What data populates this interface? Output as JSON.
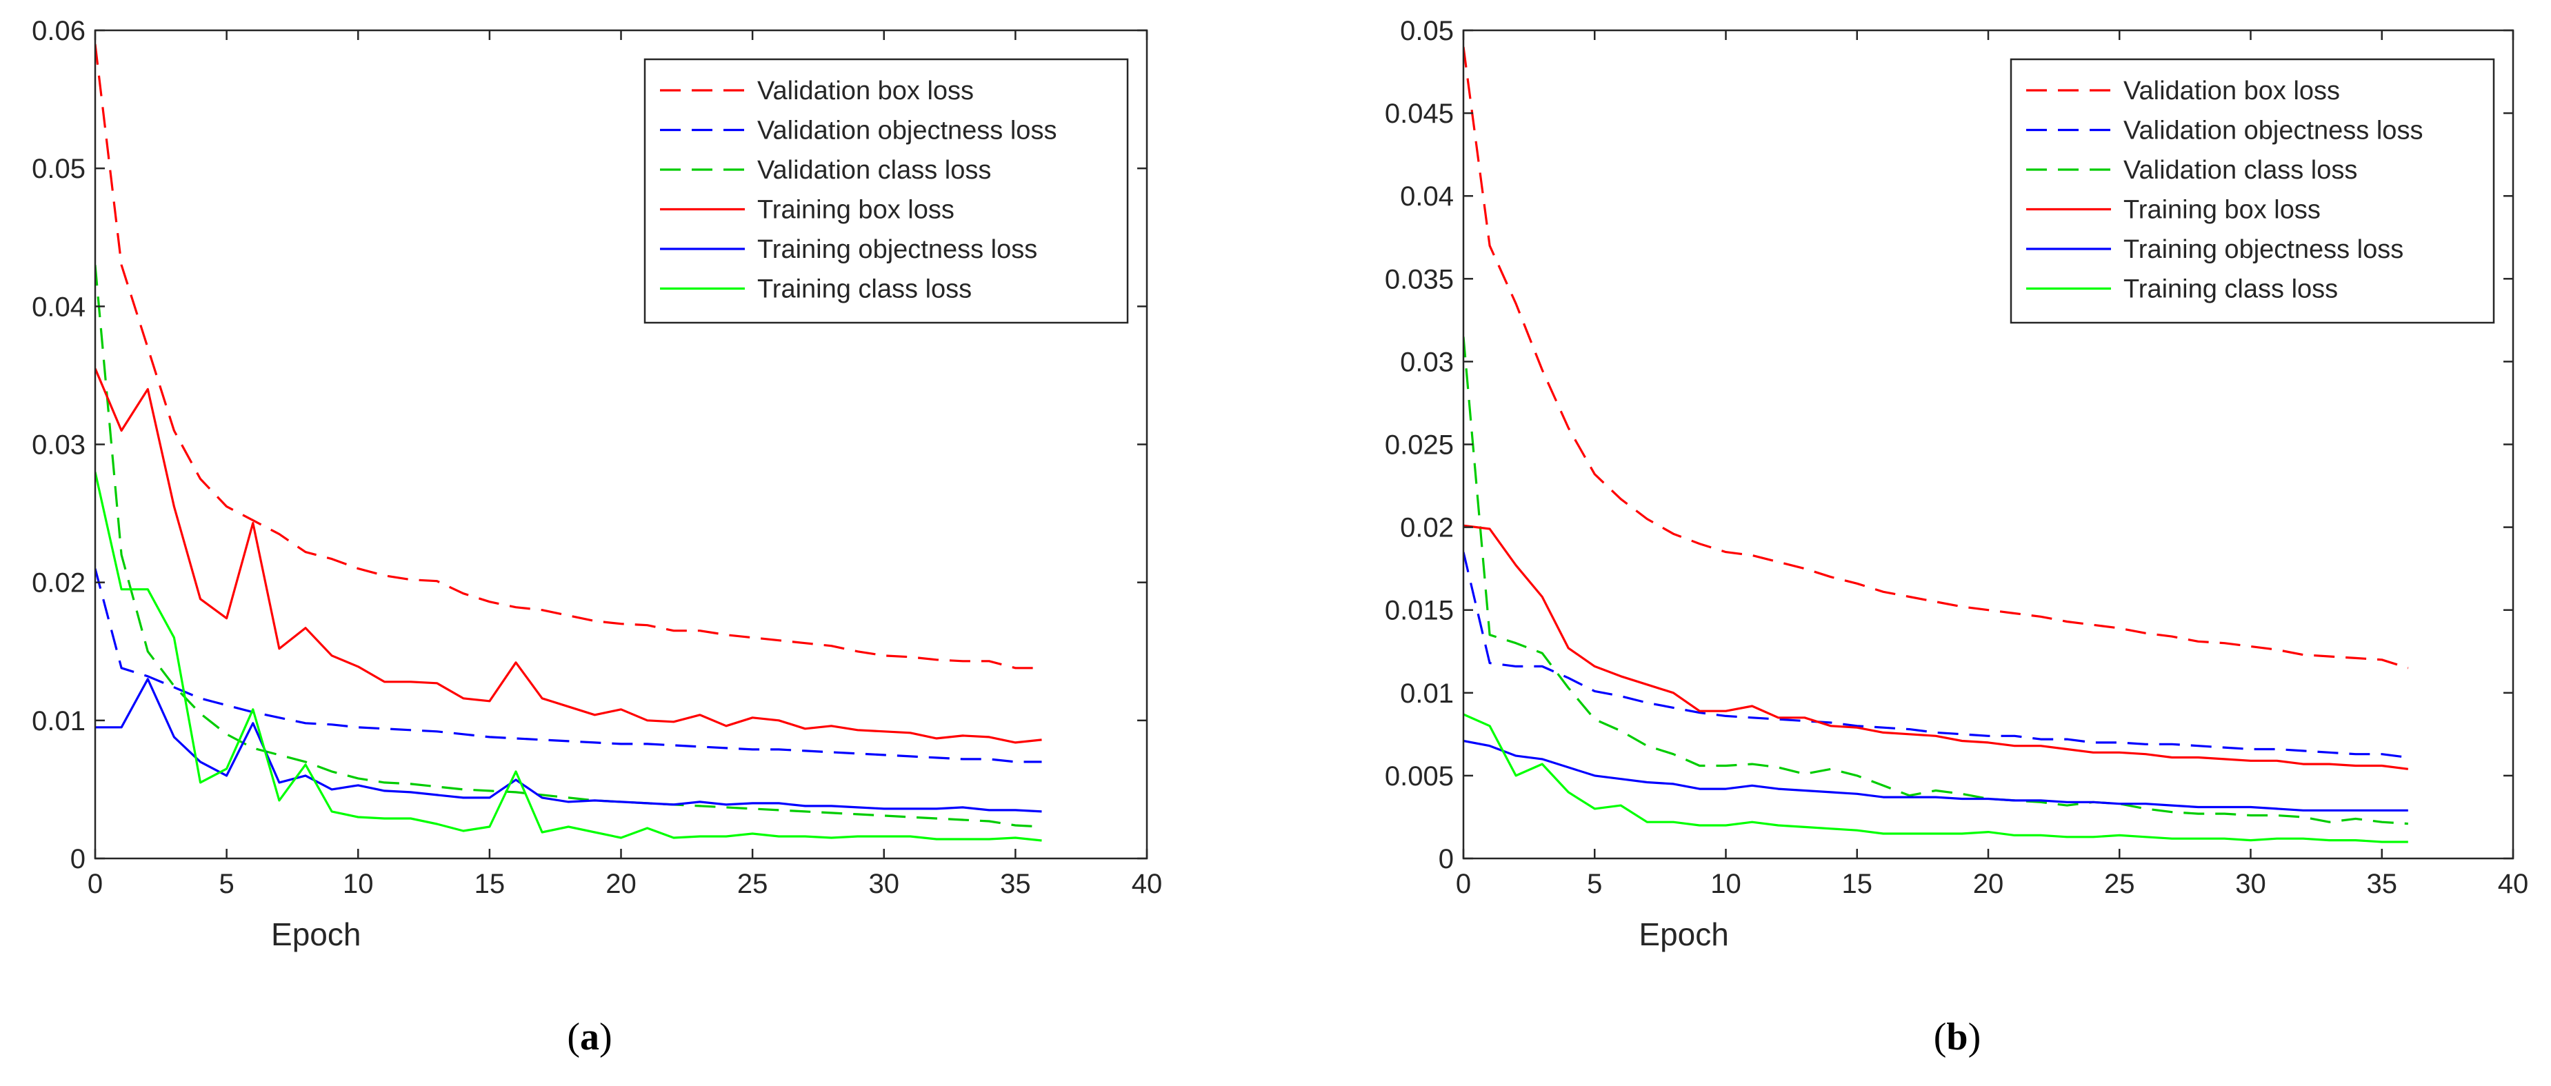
{
  "chart_data": [
    {
      "type": "line",
      "caption_letter": "a",
      "xlabel": "Epoch",
      "ylabel": "",
      "xlim": [
        0,
        40
      ],
      "ylim": [
        0,
        0.06
      ],
      "xticks": [
        0,
        5,
        10,
        15,
        20,
        25,
        30,
        35,
        40
      ],
      "yticks": [
        0,
        0.01,
        0.02,
        0.03,
        0.04,
        0.05,
        0.06
      ],
      "xtick_labels": [
        "0",
        "5",
        "10",
        "15",
        "20",
        "25",
        "30",
        "35",
        "40"
      ],
      "ytick_labels": [
        "0",
        "0.01",
        "0.02",
        "0.03",
        "0.04",
        "0.05",
        "0.06"
      ],
      "grid": false,
      "legend_position": "top-right",
      "x": [
        0,
        1,
        2,
        3,
        4,
        5,
        6,
        7,
        8,
        9,
        10,
        11,
        12,
        13,
        14,
        15,
        16,
        17,
        18,
        19,
        20,
        21,
        22,
        23,
        24,
        25,
        26,
        27,
        28,
        29,
        30,
        31,
        32,
        33,
        34,
        35,
        36
      ],
      "series": [
        {
          "name": "Validation box loss",
          "color": "#ff0000",
          "dash": true,
          "values": [
            0.059,
            0.043,
            0.037,
            0.031,
            0.0275,
            0.0255,
            0.0245,
            0.0235,
            0.0222,
            0.0217,
            0.021,
            0.0205,
            0.0202,
            0.0201,
            0.0192,
            0.0186,
            0.0182,
            0.018,
            0.0176,
            0.0172,
            0.017,
            0.0169,
            0.0165,
            0.0165,
            0.0162,
            0.016,
            0.0158,
            0.0156,
            0.0154,
            0.015,
            0.0147,
            0.0146,
            0.0144,
            0.0143,
            0.0143,
            0.0138,
            0.0138
          ]
        },
        {
          "name": "Validation objectness loss",
          "color": "#0000ff",
          "dash": true,
          "values": [
            0.021,
            0.0138,
            0.0132,
            0.0124,
            0.0116,
            0.0111,
            0.0106,
            0.0102,
            0.0098,
            0.0097,
            0.0095,
            0.0094,
            0.0093,
            0.0092,
            0.009,
            0.0088,
            0.0087,
            0.0086,
            0.0085,
            0.0084,
            0.0083,
            0.0083,
            0.0082,
            0.0081,
            0.008,
            0.0079,
            0.0079,
            0.0078,
            0.0077,
            0.0076,
            0.0075,
            0.0074,
            0.0073,
            0.0072,
            0.0072,
            0.007,
            0.007
          ]
        },
        {
          "name": "Validation class loss",
          "color": "#00cc00",
          "dash": true,
          "values": [
            0.043,
            0.022,
            0.015,
            0.0125,
            0.0105,
            0.009,
            0.008,
            0.0075,
            0.007,
            0.0063,
            0.0058,
            0.0055,
            0.0054,
            0.0052,
            0.005,
            0.0049,
            0.0048,
            0.0046,
            0.0044,
            0.0042,
            0.0041,
            0.004,
            0.0039,
            0.0038,
            0.0037,
            0.0036,
            0.0035,
            0.0034,
            0.0033,
            0.0032,
            0.0031,
            0.003,
            0.0029,
            0.0028,
            0.0027,
            0.0024,
            0.0023
          ]
        },
        {
          "name": "Training box loss",
          "color": "#ff0000",
          "dash": false,
          "values": [
            0.0355,
            0.031,
            0.034,
            0.0255,
            0.0188,
            0.0174,
            0.0243,
            0.0152,
            0.0167,
            0.0147,
            0.0139,
            0.0128,
            0.0128,
            0.0127,
            0.0116,
            0.0114,
            0.0142,
            0.0116,
            0.011,
            0.0104,
            0.0108,
            0.01,
            0.0099,
            0.0104,
            0.0096,
            0.0102,
            0.01,
            0.0094,
            0.0096,
            0.0093,
            0.0092,
            0.0091,
            0.0087,
            0.0089,
            0.0088,
            0.0084,
            0.0086
          ]
        },
        {
          "name": "Training objectness loss",
          "color": "#0000ff",
          "dash": false,
          "values": [
            0.0095,
            0.0095,
            0.013,
            0.0088,
            0.007,
            0.006,
            0.0098,
            0.0055,
            0.006,
            0.005,
            0.0053,
            0.0049,
            0.0048,
            0.0046,
            0.0044,
            0.0044,
            0.0057,
            0.0044,
            0.0041,
            0.0042,
            0.0041,
            0.004,
            0.0039,
            0.0041,
            0.0039,
            0.004,
            0.004,
            0.0038,
            0.0038,
            0.0037,
            0.0036,
            0.0036,
            0.0036,
            0.0037,
            0.0035,
            0.0035,
            0.0034
          ]
        },
        {
          "name": "Training class loss",
          "color": "#00ff00",
          "dash": false,
          "values": [
            0.028,
            0.0195,
            0.0195,
            0.016,
            0.0055,
            0.0065,
            0.0108,
            0.0042,
            0.0068,
            0.0034,
            0.003,
            0.0029,
            0.0029,
            0.0025,
            0.002,
            0.0023,
            0.0063,
            0.0019,
            0.0023,
            0.0019,
            0.0015,
            0.0022,
            0.0015,
            0.0016,
            0.0016,
            0.0018,
            0.0016,
            0.0016,
            0.0015,
            0.0016,
            0.0016,
            0.0016,
            0.0014,
            0.0014,
            0.0014,
            0.0015,
            0.0013
          ]
        }
      ]
    },
    {
      "type": "line",
      "caption_letter": "b",
      "xlabel": "Epoch",
      "ylabel": "",
      "xlim": [
        0,
        40
      ],
      "ylim": [
        0,
        0.05
      ],
      "xticks": [
        0,
        5,
        10,
        15,
        20,
        25,
        30,
        35,
        40
      ],
      "yticks": [
        0,
        0.005,
        0.01,
        0.015,
        0.02,
        0.025,
        0.03,
        0.035,
        0.04,
        0.045,
        0.05
      ],
      "xtick_labels": [
        "0",
        "5",
        "10",
        "15",
        "20",
        "25",
        "30",
        "35",
        "40"
      ],
      "ytick_labels": [
        "0",
        "0.005",
        "0.01",
        "0.015",
        "0.02",
        "0.025",
        "0.03",
        "0.035",
        "0.04",
        "0.045",
        "0.05"
      ],
      "grid": false,
      "legend_position": "top-right",
      "x": [
        0,
        1,
        2,
        3,
        4,
        5,
        6,
        7,
        8,
        9,
        10,
        11,
        12,
        13,
        14,
        15,
        16,
        17,
        18,
        19,
        20,
        21,
        22,
        23,
        24,
        25,
        26,
        27,
        28,
        29,
        30,
        31,
        32,
        33,
        34,
        35,
        36
      ],
      "series": [
        {
          "name": "Validation box loss",
          "color": "#ff0000",
          "dash": true,
          "values": [
            0.049,
            0.037,
            0.0335,
            0.0295,
            0.026,
            0.0232,
            0.0217,
            0.0205,
            0.0196,
            0.019,
            0.0185,
            0.0183,
            0.0179,
            0.0175,
            0.017,
            0.0166,
            0.0161,
            0.0158,
            0.0155,
            0.0152,
            0.015,
            0.0148,
            0.0146,
            0.0143,
            0.0141,
            0.0139,
            0.0136,
            0.0134,
            0.0131,
            0.013,
            0.0128,
            0.0126,
            0.0123,
            0.0122,
            0.0121,
            0.012,
            0.0115
          ]
        },
        {
          "name": "Validation objectness loss",
          "color": "#0000ff",
          "dash": true,
          "values": [
            0.0185,
            0.0118,
            0.0116,
            0.0116,
            0.0109,
            0.0101,
            0.0098,
            0.0094,
            0.0091,
            0.0088,
            0.0086,
            0.0085,
            0.0084,
            0.0083,
            0.0082,
            0.008,
            0.0079,
            0.0078,
            0.0076,
            0.0075,
            0.0074,
            0.0074,
            0.0072,
            0.0072,
            0.007,
            0.007,
            0.0069,
            0.0069,
            0.0068,
            0.0067,
            0.0066,
            0.0066,
            0.0065,
            0.0064,
            0.0063,
            0.0063,
            0.0061
          ]
        },
        {
          "name": "Validation class loss",
          "color": "#00cc00",
          "dash": true,
          "values": [
            0.0315,
            0.0135,
            0.013,
            0.0124,
            0.0103,
            0.0084,
            0.0077,
            0.0068,
            0.0063,
            0.0056,
            0.0056,
            0.0057,
            0.0055,
            0.0051,
            0.0054,
            0.005,
            0.0044,
            0.0038,
            0.0041,
            0.0039,
            0.0036,
            0.0035,
            0.0034,
            0.0032,
            0.0034,
            0.0033,
            0.003,
            0.0028,
            0.0027,
            0.0027,
            0.0026,
            0.0026,
            0.0025,
            0.0022,
            0.0024,
            0.0022,
            0.0021
          ]
        },
        {
          "name": "Training box loss",
          "color": "#ff0000",
          "dash": false,
          "values": [
            0.0201,
            0.0199,
            0.0177,
            0.0158,
            0.0127,
            0.0116,
            0.011,
            0.0105,
            0.01,
            0.0089,
            0.0089,
            0.0092,
            0.0085,
            0.0085,
            0.008,
            0.0079,
            0.0076,
            0.0075,
            0.0074,
            0.0071,
            0.007,
            0.0068,
            0.0068,
            0.0066,
            0.0064,
            0.0064,
            0.0063,
            0.0061,
            0.0061,
            0.006,
            0.0059,
            0.0059,
            0.0057,
            0.0057,
            0.0056,
            0.0056,
            0.0054
          ]
        },
        {
          "name": "Training objectness loss",
          "color": "#0000ff",
          "dash": false,
          "values": [
            0.0071,
            0.0068,
            0.0062,
            0.006,
            0.0055,
            0.005,
            0.0048,
            0.0046,
            0.0045,
            0.0042,
            0.0042,
            0.0044,
            0.0042,
            0.0041,
            0.004,
            0.0039,
            0.0037,
            0.0037,
            0.0037,
            0.0036,
            0.0036,
            0.0035,
            0.0035,
            0.0034,
            0.0034,
            0.0033,
            0.0033,
            0.0032,
            0.0031,
            0.0031,
            0.0031,
            0.003,
            0.0029,
            0.0029,
            0.0029,
            0.0029,
            0.0029
          ]
        },
        {
          "name": "Training class loss",
          "color": "#00ff00",
          "dash": false,
          "values": [
            0.0087,
            0.008,
            0.005,
            0.0057,
            0.004,
            0.003,
            0.0032,
            0.0022,
            0.0022,
            0.002,
            0.002,
            0.0022,
            0.002,
            0.0019,
            0.0018,
            0.0017,
            0.0015,
            0.0015,
            0.0015,
            0.0015,
            0.0016,
            0.0014,
            0.0014,
            0.0013,
            0.0013,
            0.0014,
            0.0013,
            0.0012,
            0.0012,
            0.0012,
            0.0011,
            0.0012,
            0.0012,
            0.0011,
            0.0011,
            0.001,
            0.001
          ]
        }
      ]
    }
  ]
}
